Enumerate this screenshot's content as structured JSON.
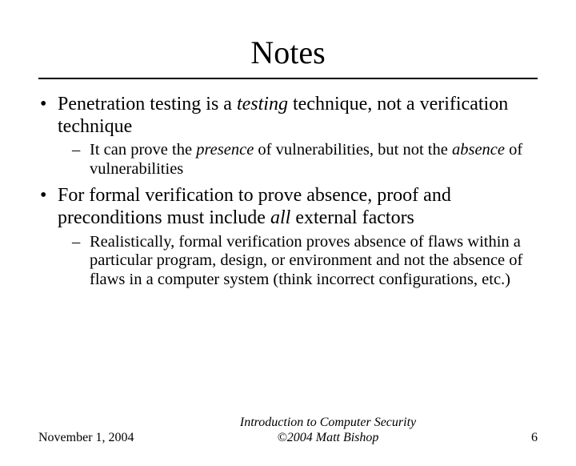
{
  "title": "Notes",
  "bullets": [
    {
      "text_html": "Penetration testing is a <span class=\"italic\">testing</span> technique, not a verification technique",
      "sub": [
        {
          "text_html": "It can prove the <span class=\"italic\">presence</span> of vulnerabilities, but not the <span class=\"italic\">absence</span> of vulnerabilities"
        }
      ]
    },
    {
      "text_html": "For formal verification to prove absence, proof and preconditions must include <span class=\"italic\">all</span> external factors",
      "sub": [
        {
          "text_html": "Realistically, formal verification proves absence of flaws within a particular program, design, or environment and not the absence of flaws in a computer system (think incorrect configurations, etc.)"
        }
      ]
    }
  ],
  "footer": {
    "date": "November 1, 2004",
    "center_line1": "Introduction to Computer Security",
    "center_line2": "©2004 Matt Bishop",
    "page": "6"
  },
  "style": {
    "background_color": "#ffffff",
    "text_color": "#000000",
    "title_fontsize": 40,
    "body_fontsize": 24,
    "sub_fontsize": 20.5,
    "footer_fontsize": 16,
    "rule_color": "#000000",
    "font_family": "Times New Roman"
  }
}
